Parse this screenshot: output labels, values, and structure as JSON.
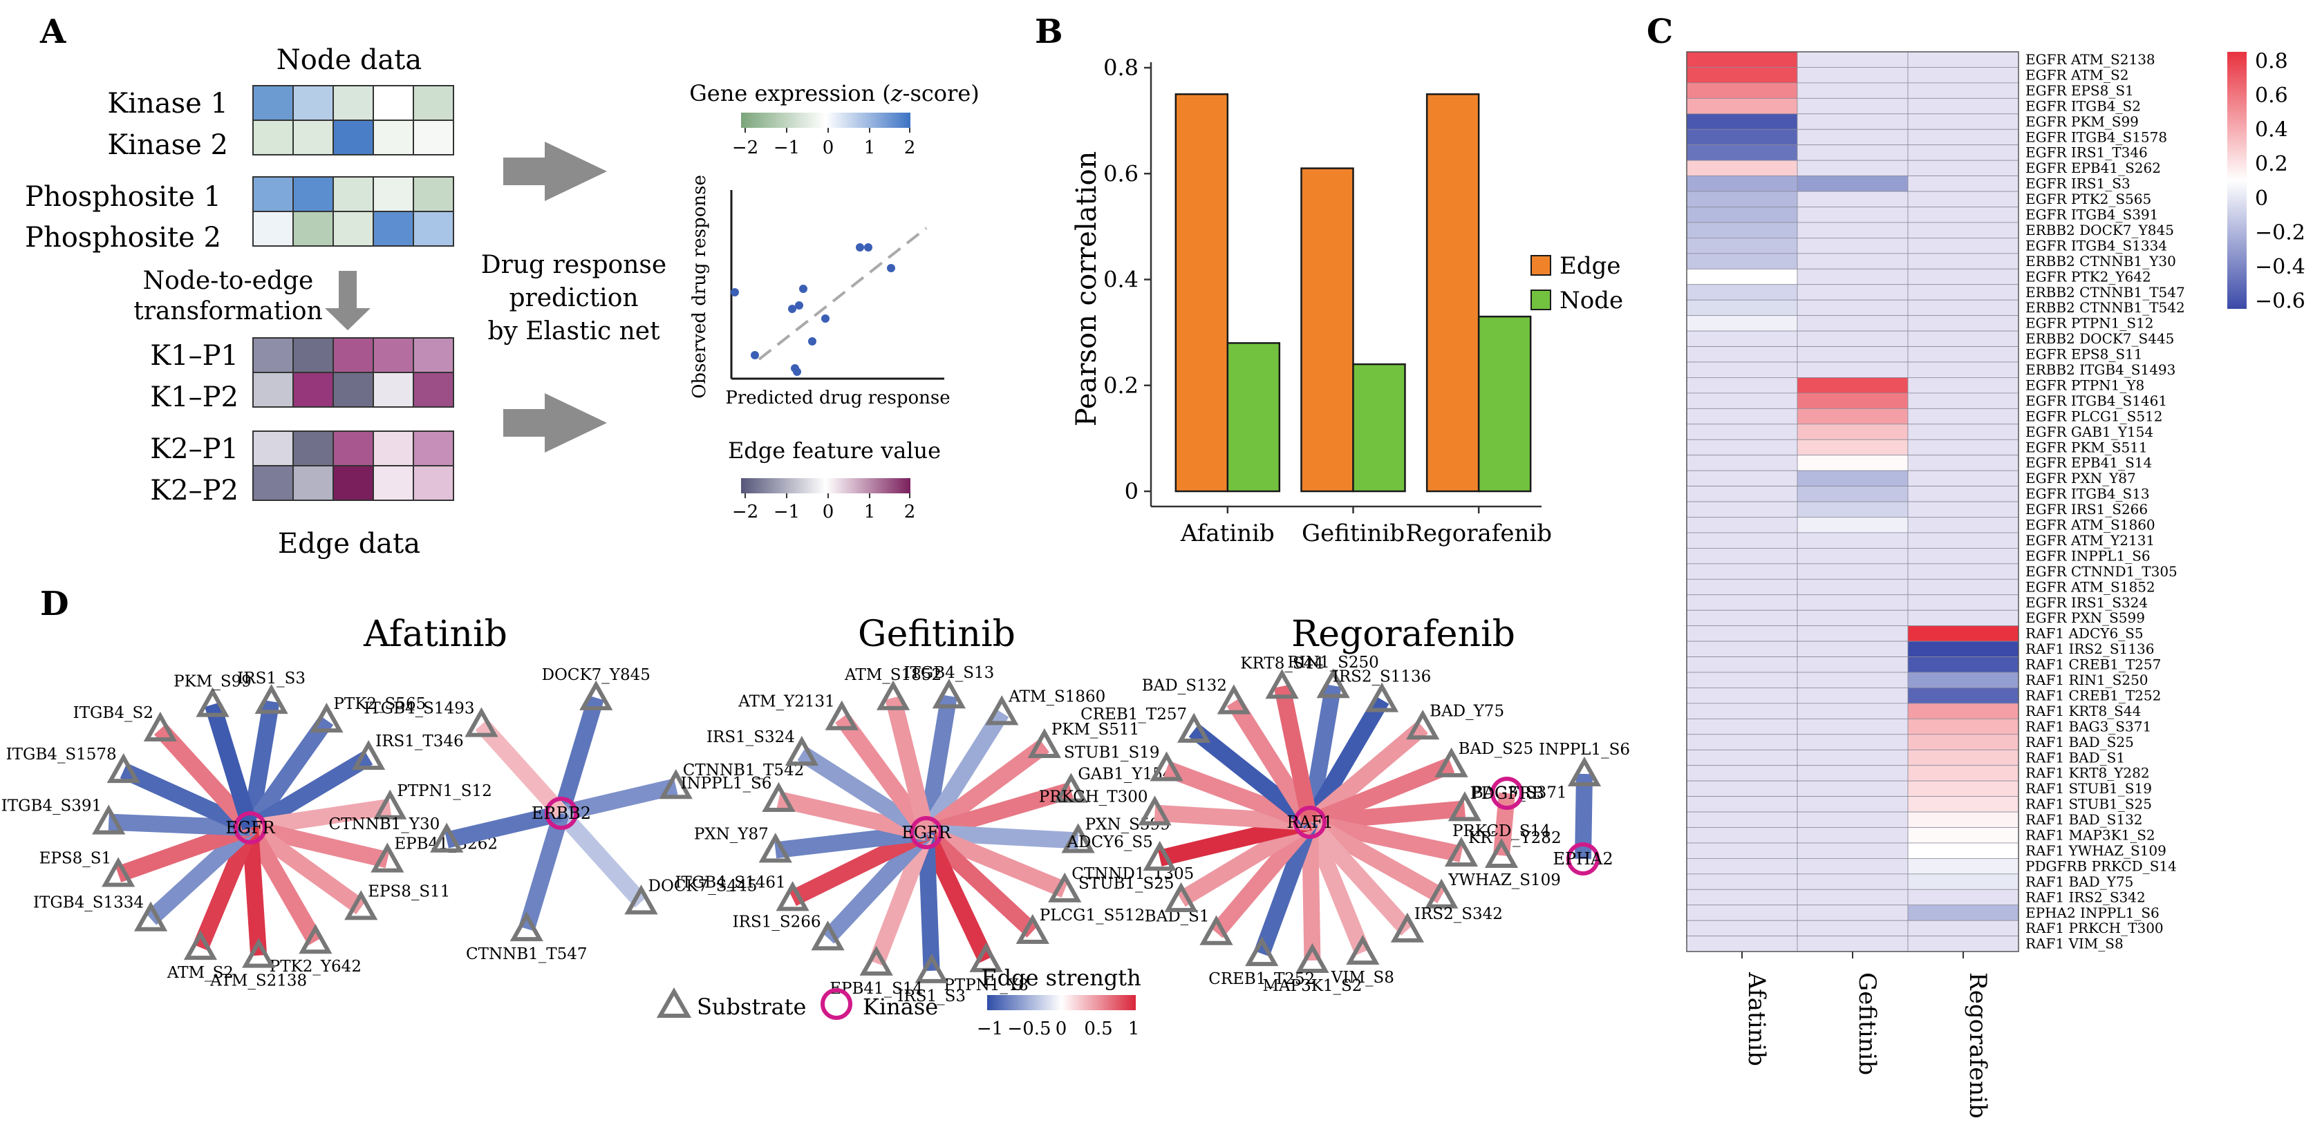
{
  "panel_letters": {
    "a": "A",
    "b": "B",
    "c": "C",
    "d": "D"
  },
  "panel_a": {
    "node_title": "Node data",
    "edge_title": "Edge data",
    "node_rows": [
      "Kinase 1",
      "Kinase 2",
      "Phosphosite 1",
      "Phosphosite 2"
    ],
    "edge_rows": [
      "K1–P1",
      "K1–P2",
      "K2–P1",
      "K2–P2"
    ],
    "transform_label": [
      "Node-to-edge",
      "transformation"
    ],
    "model_label": [
      "Drug response",
      "prediction",
      "by Elastic net"
    ],
    "gene_expr_title_prefix": "Gene expression (",
    "gene_expr_title_z": "z",
    "gene_expr_title_suffix": "-score)",
    "edge_feature_title": "Edge feature value",
    "legend_ticks": [
      "−2",
      "−1",
      "0",
      "1",
      "2"
    ],
    "scatter_xlabel": "Predicted drug response",
    "scatter_ylabel": "Observed drug response",
    "node_colors": [
      [
        "#6b9bd1",
        "#b6cde8",
        "#d9e6dc",
        "#ffffff",
        "#cfdfcf"
      ],
      [
        "#d8e7d8",
        "#dce9dc",
        "#4a7fc8",
        "#f0f5ef",
        "#f6f8f6"
      ],
      [
        "#7ea8d9",
        "#5b8ecf",
        "#d8e6da",
        "#ebf1eb",
        "#c6d9c6"
      ],
      [
        "#eef3f8",
        "#b5ceb5",
        "#dbe8db",
        "#5d8fd0",
        "#a8c4e6"
      ]
    ],
    "edge_colors": [
      [
        "#8e8ea8",
        "#6e6e88",
        "#a8588f",
        "#b46fa0",
        "#c08db6"
      ],
      [
        "#c6c6d2",
        "#95377a",
        "#6e6e88",
        "#e9e6ee",
        "#9c4e87"
      ],
      [
        "#d8d6e0",
        "#70708a",
        "#a8588f",
        "#eedde8",
        "#c58fb9"
      ],
      [
        "#7c7c98",
        "#b3b3c4",
        "#7a1f5c",
        "#f1e4ee",
        "#e1c2d8"
      ]
    ]
  },
  "chart_data": [
    {
      "type": "bar",
      "panel": "B",
      "categories": [
        "Afatinib",
        "Gefitinib",
        "Regorafenib"
      ],
      "series": [
        {
          "name": "Edge",
          "color": "#f0832a",
          "values": [
            0.75,
            0.61,
            0.75
          ]
        },
        {
          "name": "Node",
          "color": "#72c23f",
          "values": [
            0.28,
            0.24,
            0.33
          ]
        }
      ],
      "ylabel": "Pearson correlation",
      "ylim": [
        0,
        0.8
      ],
      "yticks": [
        0,
        0.2,
        0.4,
        0.6,
        0.8
      ],
      "ytick_labels": [
        "0",
        "0.2",
        "0.4",
        "0.6",
        "0.8"
      ],
      "legend_placement": "right"
    },
    {
      "type": "heatmap",
      "panel": "C",
      "columns": [
        "Afatinib",
        "Gefitinib",
        "Regorafenib"
      ],
      "rows": [
        "EGFR ATM_S2138",
        "EGFR ATM_S2",
        "EGFR EPS8_S1",
        "EGFR ITGB4_S2",
        "EGFR PKM_S99",
        "EGFR ITGB4_S1578",
        "EGFR IRS1_T346",
        "EGFR EPB41_S262",
        "EGFR IRS1_S3",
        "EGFR PTK2_S565",
        "EGFR ITGB4_S391",
        "ERBB2 DOCK7_Y845",
        "EGFR ITGB4_S1334",
        "ERBB2 CTNNB1_Y30",
        "EGFR PTK2_Y642",
        "ERBB2 CTNNB1_T547",
        "ERBB2 CTNNB1_T542",
        "EGFR PTPN1_S12",
        "ERBB2 DOCK7_S445",
        "EGFR EPS8_S11",
        "ERBB2 ITGB4_S1493",
        "EGFR PTPN1_Y8",
        "EGFR ITGB4_S1461",
        "EGFR PLCG1_S512",
        "EGFR GAB1_Y154",
        "EGFR PKM_S511",
        "EGFR EPB41_S14",
        "EGFR PXN_Y87",
        "EGFR ITGB4_S13",
        "EGFR IRS1_S266",
        "EGFR ATM_S1860",
        "EGFR ATM_Y2131",
        "EGFR INPPL1_S6",
        "EGFR CTNND1_T305",
        "EGFR ATM_S1852",
        "EGFR IRS1_S324",
        "EGFR PXN_S599",
        "RAF1 ADCY6_S5",
        "RAF1 IRS2_S1136",
        "RAF1 CREB1_T257",
        "RAF1 RIN1_S250",
        "RAF1 CREB1_T252",
        "RAF1 KRT8_S44",
        "RAF1 BAG3_S371",
        "RAF1 BAD_S25",
        "RAF1 BAD_S1",
        "RAF1 KRT8_Y282",
        "RAF1 STUB1_S19",
        "RAF1 STUB1_S25",
        "RAF1 BAD_S132",
        "RAF1 MAP3K1_S2",
        "RAF1 YWHAZ_S109",
        "PDGFRB PRKCD_S14",
        "RAF1 BAD_Y75",
        "RAF1 IRS2_S342",
        "EPHA2 INPPL1_S6",
        "RAF1 PRKCH_T300",
        "RAF1 VIM_S8"
      ],
      "values": [
        [
          0.75,
          -0.1,
          -0.1
        ],
        [
          0.72,
          -0.1,
          -0.1
        ],
        [
          0.5,
          -0.1,
          -0.1
        ],
        [
          0.35,
          -0.1,
          -0.1
        ],
        [
          -0.6,
          -0.1,
          -0.1
        ],
        [
          -0.55,
          -0.1,
          -0.1
        ],
        [
          -0.5,
          -0.1,
          -0.1
        ],
        [
          0.2,
          -0.1,
          -0.1
        ],
        [
          -0.3,
          -0.35,
          -0.1
        ],
        [
          -0.25,
          -0.1,
          -0.1
        ],
        [
          -0.25,
          -0.1,
          -0.1
        ],
        [
          -0.22,
          -0.1,
          -0.1
        ],
        [
          -0.2,
          -0.1,
          -0.1
        ],
        [
          -0.2,
          -0.1,
          -0.1
        ],
        [
          0.0,
          -0.1,
          -0.1
        ],
        [
          -0.15,
          -0.1,
          -0.1
        ],
        [
          -0.12,
          -0.1,
          -0.1
        ],
        [
          -0.05,
          -0.1,
          -0.1
        ],
        [
          -0.1,
          -0.1,
          -0.1
        ],
        [
          -0.1,
          -0.1,
          -0.1
        ],
        [
          -0.1,
          -0.1,
          -0.1
        ],
        [
          -0.1,
          0.72,
          -0.1
        ],
        [
          -0.1,
          0.55,
          -0.1
        ],
        [
          -0.1,
          0.4,
          -0.1
        ],
        [
          -0.1,
          0.25,
          -0.1
        ],
        [
          -0.1,
          0.18,
          -0.1
        ],
        [
          -0.1,
          0.02,
          -0.1
        ],
        [
          -0.1,
          -0.25,
          -0.1
        ],
        [
          -0.1,
          -0.2,
          -0.1
        ],
        [
          -0.1,
          -0.15,
          -0.1
        ],
        [
          -0.1,
          -0.05,
          -0.1
        ],
        [
          -0.1,
          -0.1,
          -0.1
        ],
        [
          -0.1,
          -0.1,
          -0.1
        ],
        [
          -0.1,
          -0.1,
          -0.1
        ],
        [
          -0.1,
          -0.1,
          -0.1
        ],
        [
          -0.1,
          -0.1,
          -0.1
        ],
        [
          -0.1,
          -0.1,
          -0.1
        ],
        [
          -0.1,
          -0.1,
          0.85
        ],
        [
          -0.1,
          -0.1,
          -0.65
        ],
        [
          -0.1,
          -0.1,
          -0.6
        ],
        [
          -0.1,
          -0.1,
          -0.35
        ],
        [
          -0.1,
          -0.1,
          -0.55
        ],
        [
          -0.1,
          -0.1,
          0.4
        ],
        [
          -0.1,
          -0.1,
          0.3
        ],
        [
          -0.1,
          -0.1,
          0.25
        ],
        [
          -0.1,
          -0.1,
          0.2
        ],
        [
          -0.1,
          -0.1,
          0.18
        ],
        [
          -0.1,
          -0.1,
          0.15
        ],
        [
          -0.1,
          -0.1,
          0.12
        ],
        [
          -0.1,
          -0.1,
          0.05
        ],
        [
          -0.1,
          -0.1,
          0.02
        ],
        [
          -0.1,
          -0.1,
          0.0
        ],
        [
          -0.1,
          -0.1,
          -0.05
        ],
        [
          -0.1,
          -0.1,
          -0.08
        ],
        [
          -0.1,
          -0.1,
          -0.1
        ],
        [
          -0.1,
          -0.1,
          -0.25
        ],
        [
          -0.1,
          -0.1,
          -0.1
        ],
        [
          -0.1,
          -0.1,
          -0.1
        ]
      ],
      "colorbar": {
        "ticks": [
          0.8,
          0.6,
          0.4,
          0.2,
          0,
          -0.2,
          -0.4,
          -0.6
        ],
        "labels": [
          "0.8",
          "0.6",
          "0.4",
          "0.2",
          "0",
          "−0.2",
          "−0.4",
          "−0.6"
        ],
        "range": [
          -0.65,
          0.85
        ]
      }
    }
  ],
  "panel_d": {
    "titles": [
      "Afatinib",
      "Gefitinib",
      "Regorafenib"
    ],
    "legend_substrate": "Substrate",
    "legend_kinase": "Kinase",
    "edge_strength_title": "Edge strength",
    "edge_strength_ticks": [
      "−1",
      "−0.5",
      "0",
      "0.5",
      "1"
    ],
    "networks": [
      {
        "name": "Afatinib",
        "groups": [
          {
            "kinase": "EGFR",
            "edges": [
              [
                "IRS1_S3",
                -0.8
              ],
              [
                "PTK2_S565",
                -0.7
              ],
              [
                "IRS1_T346",
                -0.8
              ],
              [
                "PTPN1_S12",
                0.2
              ],
              [
                "EPB41_S262",
                0.4
              ],
              [
                "EPS8_S11",
                0.3
              ],
              [
                "PTK2_Y642",
                0.45
              ],
              [
                "ATM_S2138",
                0.9
              ],
              [
                "ATM_S2",
                0.85
              ],
              [
                "ITGB4_S1334",
                -0.5
              ],
              [
                "EPS8_S1",
                0.6
              ],
              [
                "ITGB4_S391",
                -0.6
              ],
              [
                "ITGB4_S1578",
                -0.8
              ],
              [
                "ITGB4_S2",
                0.5
              ],
              [
                "PKM_S99",
                -0.9
              ]
            ]
          },
          {
            "kinase": "ERBB2",
            "edges": [
              [
                "DOCK7_Y845",
                -0.7
              ],
              [
                "CTNNB1_T542",
                -0.5
              ],
              [
                "DOCK7_S445",
                -0.1
              ],
              [
                "CTNNB1_T547",
                -0.6
              ],
              [
                "CTNNB1_Y30",
                -0.7
              ],
              [
                "ITGB4_S1493",
                0.1
              ]
            ]
          }
        ]
      },
      {
        "name": "Gefitinib",
        "groups": [
          {
            "kinase": "EGFR",
            "edges": [
              [
                "ITGB4_S13",
                -0.6
              ],
              [
                "ATM_S1860",
                -0.3
              ],
              [
                "PKM_S511",
                0.4
              ],
              [
                "GAB1_Y154",
                0.5
              ],
              [
                "PXN_S599",
                -0.3
              ],
              [
                "CTNND1_T305",
                0.3
              ],
              [
                "PLCG1_S512",
                0.6
              ],
              [
                "PTPN1_Y8",
                0.9
              ],
              [
                "IRS1_S3",
                -0.8
              ],
              [
                "EPB41_S14",
                0.2
              ],
              [
                "IRS1_S266",
                -0.5
              ],
              [
                "ITGB4_S1461",
                0.8
              ],
              [
                "PXN_Y87",
                -0.6
              ],
              [
                "INPPL1_S6",
                0.3
              ],
              [
                "IRS1_S324",
                -0.4
              ],
              [
                "ATM_Y2131",
                0.35
              ],
              [
                "ATM_S1852",
                0.3
              ]
            ]
          }
        ]
      },
      {
        "name": "Regorafenib",
        "groups": [
          {
            "kinase": "RAF1",
            "edges": [
              [
                "RIN1_S250",
                -0.7
              ],
              [
                "IRS2_S1136",
                -0.9
              ],
              [
                "BAD_Y75",
                0.3
              ],
              [
                "BAD_S25",
                0.5
              ],
              [
                "BAG3_S371",
                0.5
              ],
              [
                "KRT8_Y282",
                0.4
              ],
              [
                "YWHAZ_S109",
                0.3
              ],
              [
                "IRS2_S342",
                0.2
              ],
              [
                "VIM_S8",
                0.2
              ],
              [
                "MAP3K1_S2",
                0.3
              ],
              [
                "CREB1_T252",
                -0.8
              ],
              [
                "BAD_S1",
                0.4
              ],
              [
                "STUB1_S25",
                0.3
              ],
              [
                "ADCY6_S5",
                0.95
              ],
              [
                "PRKCH_T300",
                0.3
              ],
              [
                "STUB1_S19",
                0.4
              ],
              [
                "CREB1_T257",
                -0.9
              ],
              [
                "BAD_S132",
                0.4
              ],
              [
                "KRT8_S44",
                0.6
              ]
            ]
          },
          {
            "kinase": "PDGFRB",
            "edges": [
              [
                "PRKCD_S14",
                0.4
              ]
            ]
          },
          {
            "kinase": "EPHA2",
            "edges": [
              [
                "INPPL1_S6",
                -0.7
              ]
            ]
          }
        ]
      }
    ]
  }
}
